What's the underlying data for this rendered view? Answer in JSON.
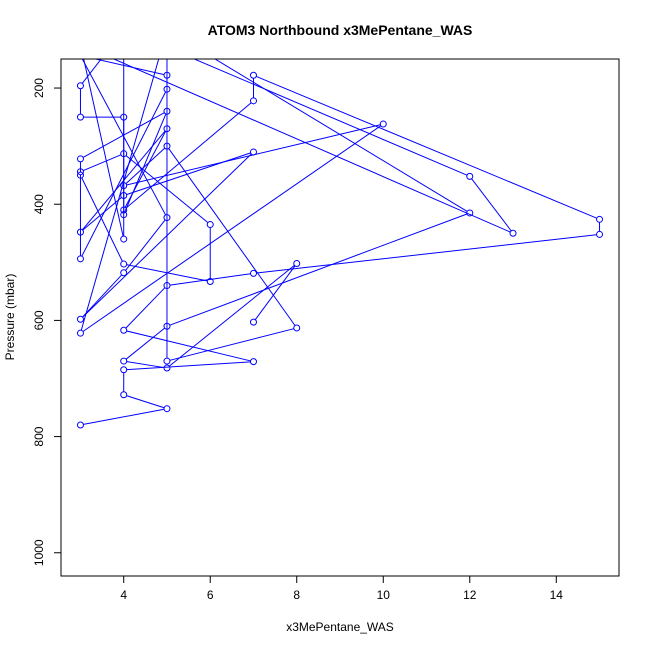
{
  "chart_data": {
    "type": "line",
    "title": "ATOM3 Northbound x3MePentane_WAS",
    "xlabel": "x3MePentane_WAS",
    "ylabel": "Pressure (mbar)",
    "xlim": [
      2.55,
      15.45
    ],
    "ylim": [
      1040,
      150
    ],
    "y_reversed": true,
    "x_ticks": [
      4,
      6,
      8,
      10,
      12,
      14
    ],
    "y_ticks": [
      200,
      400,
      600,
      800,
      1000
    ],
    "grid": false,
    "legend": "none",
    "series": [
      {
        "color": "#0000ff",
        "points": [
          [
            3,
            780
          ],
          [
            5,
            752
          ],
          [
            4,
            728
          ],
          [
            4,
            685
          ],
          [
            7,
            671
          ],
          [
            4,
            617
          ],
          [
            5,
            540
          ],
          [
            7,
            519
          ],
          [
            15,
            452
          ],
          [
            15,
            426
          ],
          [
            7,
            178
          ],
          [
            7,
            222
          ],
          [
            4,
            410
          ],
          [
            5,
            270
          ],
          [
            3,
            448
          ],
          [
            4,
            385
          ],
          [
            7,
            310
          ],
          [
            3,
            598
          ],
          [
            4,
            518
          ],
          [
            5,
            423
          ],
          [
            3,
            144
          ],
          [
            5,
            178
          ],
          [
            5,
            202
          ],
          [
            3,
            494
          ],
          [
            3,
            344
          ],
          [
            4,
            313
          ],
          [
            6,
            435
          ],
          [
            6,
            533
          ],
          [
            4,
            503
          ],
          [
            3,
            350
          ],
          [
            3,
            322
          ],
          [
            5,
            240
          ],
          [
            4,
            418
          ],
          [
            4,
            250
          ],
          [
            3,
            250
          ],
          [
            3,
            196
          ],
          [
            4,
            100
          ],
          [
            4,
            460
          ],
          [
            3,
            125
          ],
          [
            13,
            450
          ],
          [
            12,
            352
          ],
          [
            5,
            130
          ],
          [
            5,
            670
          ],
          [
            8,
            613
          ],
          [
            5,
            300
          ],
          [
            4,
            368
          ],
          [
            10,
            262
          ],
          [
            3,
            622
          ],
          [
            5,
            100
          ],
          [
            12,
            415
          ],
          [
            5,
            610
          ],
          [
            4,
            670
          ],
          [
            5,
            682
          ],
          [
            8,
            502
          ],
          [
            7,
            603
          ]
        ]
      }
    ]
  }
}
